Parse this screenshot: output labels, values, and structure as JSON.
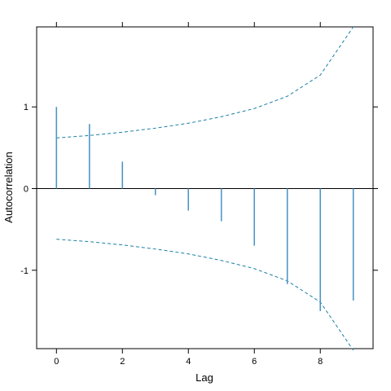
{
  "chart_data": {
    "type": "bar",
    "xlabel": "Lag",
    "ylabel": "Autocorrelation",
    "xlim": [
      -0.6,
      9.6
    ],
    "ylim": [
      -1.96,
      1.98
    ],
    "x_ticks": [
      0,
      2,
      4,
      6,
      8
    ],
    "x_tick_labels": [
      "0",
      "2",
      "4",
      "6",
      "8"
    ],
    "y_ticks": [
      -1,
      0,
      1
    ],
    "y_tick_labels": [
      "-1",
      "0",
      "1"
    ],
    "reference_line": 0,
    "lags": [
      0,
      1,
      2,
      3,
      4,
      5,
      6,
      7,
      8,
      9
    ],
    "values": [
      1.0,
      0.79,
      0.33,
      -0.08,
      -0.27,
      -0.4,
      -0.7,
      -1.17,
      -1.5,
      -1.37
    ],
    "confidence_band": {
      "x": [
        0,
        1,
        2,
        3,
        4,
        5,
        6,
        7,
        8,
        9
      ],
      "upper": [
        0.62,
        0.65,
        0.69,
        0.74,
        0.8,
        0.88,
        0.98,
        1.13,
        1.39,
        1.98
      ],
      "lower": [
        -0.62,
        -0.65,
        -0.69,
        -0.74,
        -0.8,
        -0.88,
        -0.98,
        -1.13,
        -1.39,
        -1.98
      ]
    },
    "grid": false,
    "colors": {
      "bars": "#4f97c4",
      "band": "#1a80a4",
      "axis": "#000000"
    }
  }
}
